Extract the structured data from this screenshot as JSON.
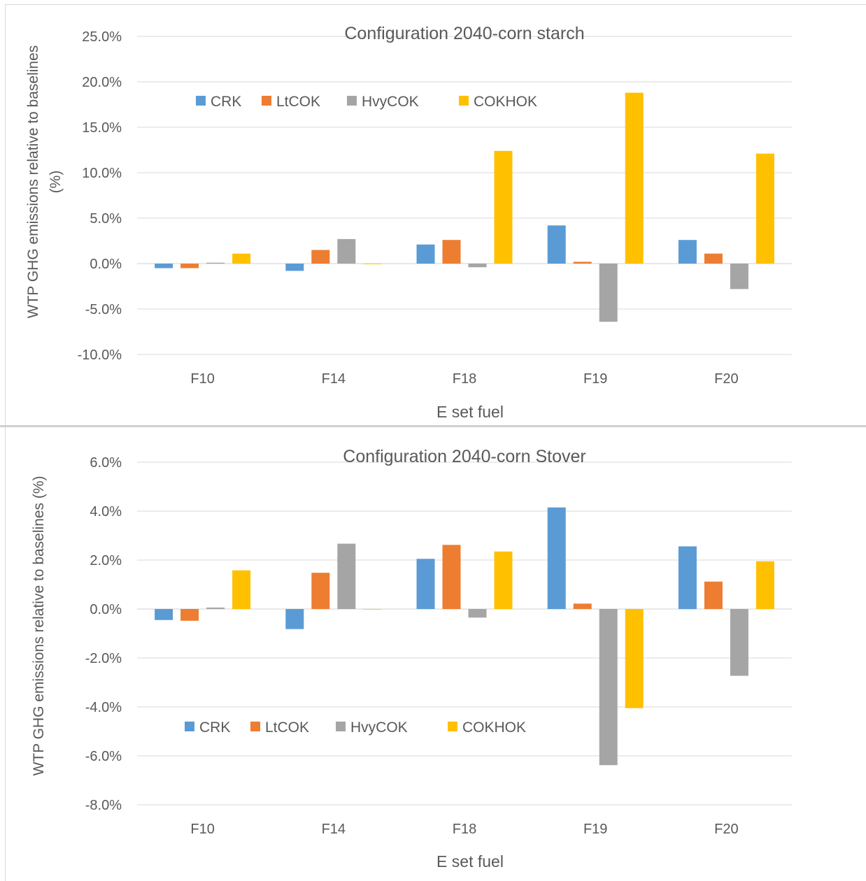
{
  "chart_data": [
    {
      "type": "bar",
      "title": "Configuration 2040-corn starch",
      "xlabel": "E set fuel",
      "ylabel_line1": "WTP GHG emissions relative to  baselines",
      "ylabel_line2": "(%)",
      "ylim": [
        -0.1,
        0.25
      ],
      "yticks": [
        -0.1,
        -0.05,
        0.0,
        0.05,
        0.1,
        0.15,
        0.2,
        0.25
      ],
      "ytick_labels": [
        "-10.0%",
        "-5.0%",
        "0.0%",
        "5.0%",
        "10.0%",
        "15.0%",
        "20.0%",
        "25.0%"
      ],
      "grid": true,
      "legend_position": "top-left",
      "categories": [
        "F10",
        "F14",
        "F18",
        "F19",
        "F20"
      ],
      "series": [
        {
          "name": "CRK",
          "color": "#5b9bd5",
          "values": [
            -0.005,
            -0.008,
            0.021,
            0.042,
            0.026
          ]
        },
        {
          "name": "LtCOK",
          "color": "#ed7d31",
          "values": [
            -0.005,
            0.015,
            0.026,
            0.002,
            0.011
          ]
        },
        {
          "name": "HvyCOK",
          "color": "#a5a5a5",
          "values": [
            0.001,
            0.027,
            -0.004,
            -0.064,
            -0.028
          ]
        },
        {
          "name": "COKHOK",
          "color": "#ffc000",
          "values": [
            0.011,
            0.0,
            0.124,
            0.188,
            0.121
          ]
        }
      ]
    },
    {
      "type": "bar",
      "title": "Configuration 2040-corn Stover",
      "xlabel": "E set fuel",
      "ylabel_line1": "WTP GHG emissions relative to  baselines  (%)",
      "ylabel_line2": "",
      "ylim": [
        -0.08,
        0.06
      ],
      "yticks": [
        -0.08,
        -0.06,
        -0.04,
        -0.02,
        0.0,
        0.02,
        0.04,
        0.06
      ],
      "ytick_labels": [
        "-8.0%",
        "-6.0%",
        "-4.0%",
        "-2.0%",
        "0.0%",
        "2.0%",
        "4.0%",
        "6.0%"
      ],
      "grid": true,
      "legend_position": "bottom-left",
      "categories": [
        "F10",
        "F14",
        "F18",
        "F19",
        "F20"
      ],
      "series": [
        {
          "name": "CRK",
          "color": "#5b9bd5",
          "values": [
            -0.0045,
            -0.0082,
            0.0205,
            0.0415,
            0.0256
          ]
        },
        {
          "name": "LtCOK",
          "color": "#ed7d31",
          "values": [
            -0.0048,
            0.0148,
            0.0262,
            0.0022,
            0.0112
          ]
        },
        {
          "name": "HvyCOK",
          "color": "#a5a5a5",
          "values": [
            0.0006,
            0.0267,
            -0.0035,
            -0.0638,
            -0.0273
          ]
        },
        {
          "name": "COKHOK",
          "color": "#ffc000",
          "values": [
            0.0158,
            0.0,
            0.0235,
            -0.0405,
            0.0195
          ]
        }
      ]
    }
  ]
}
